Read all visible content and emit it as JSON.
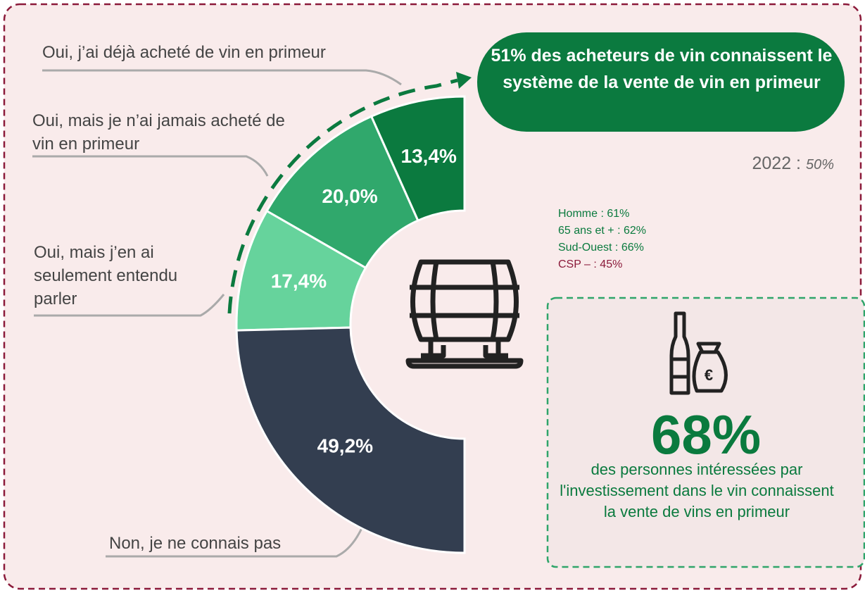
{
  "chart_data": {
    "type": "donut",
    "categories": [
      "Oui, j’ai déjà acheté de vin en primeur",
      "Oui, mais je n’ai jamais acheté de vin en primeur",
      "Oui, mais j’en ai seulement entendu parler",
      "Non, je ne connais pas"
    ],
    "values": [
      13.4,
      20.0,
      17.4,
      49.2
    ],
    "value_labels": [
      "13,4%",
      "20,0%",
      "17,4%",
      "49,2%"
    ],
    "colors": [
      "#0b7a3f",
      "#30a86c",
      "#66d39c",
      "#333e50"
    ]
  },
  "callout": {
    "text": "51% des acheteurs de vin connaissent le système de la vente de vin en primeur"
  },
  "comparison": {
    "year": "2022 :",
    "value": "50%"
  },
  "profile": [
    "Homme : 61%",
    "65 ans et + : 62%",
    "Sud-Ouest : 66%",
    "CSP – : 45%"
  ],
  "investors": {
    "headline": "68%",
    "text": "des personnes intéressées par l'investissement dans le vin connaissent la vente de vins en primeur"
  }
}
